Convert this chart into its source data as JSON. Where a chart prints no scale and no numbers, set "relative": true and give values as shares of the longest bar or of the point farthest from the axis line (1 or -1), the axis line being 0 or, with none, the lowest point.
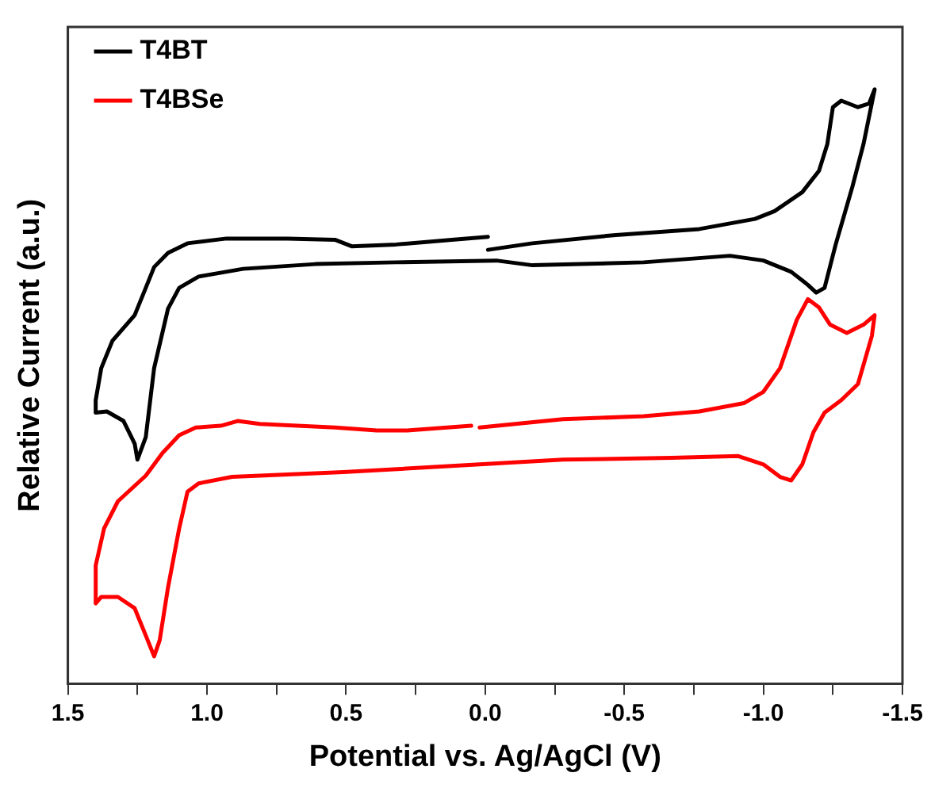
{
  "chart_data": {
    "type": "line",
    "relative": true,
    "xlabel": "Potential vs. Ag/AgCl (V)",
    "ylabel": "Relative Current (a.u.)",
    "xlim": [
      1.5,
      -1.5
    ],
    "xticks": [
      1.5,
      {
        "value": 1.25,
        "label": null
      },
      {
        "value": 1,
        "label": "1.0"
      },
      {
        "value": 0.75,
        "label": null
      },
      0.5,
      {
        "value": 0.25,
        "label": null
      },
      {
        "value": 0,
        "label": "0.0"
      },
      {
        "value": -0.25,
        "label": null
      },
      -0.5,
      {
        "value": -0.75,
        "label": null
      },
      {
        "value": -1,
        "label": "-1.0"
      },
      {
        "value": -1.25,
        "label": null
      },
      -1.5
    ],
    "grid": false,
    "legend": "top left",
    "marker": "none",
    "line_style": "solid",
    "series": [
      {
        "name": "T4BT",
        "color": "#000000",
        "x": [
          -0.01,
          0.12,
          0.32,
          0.48,
          0.54,
          0.71,
          0.93,
          1.07,
          1.14,
          1.19,
          1.22,
          1.26,
          1.34,
          1.38,
          1.4,
          1.4,
          1.36,
          1.3,
          1.26,
          1.25,
          1.22,
          1.19,
          1.14,
          1.1,
          1.03,
          0.87,
          0.61,
          0.32,
          -0.04,
          -0.17,
          -0.57,
          -0.88,
          -1.0,
          -1.1,
          -1.16,
          -1.19,
          -1.22,
          -1.26,
          -1.32,
          -1.36,
          -1.4,
          -1.38,
          -1.34,
          -1.28,
          -1.25,
          -1.23,
          -1.2,
          -1.14,
          -1.04,
          -0.97,
          -0.77,
          -0.47,
          -0.17,
          -0.01
        ],
        "values": [
          0.752,
          0.747,
          0.739,
          0.736,
          0.747,
          0.749,
          0.749,
          0.741,
          0.725,
          0.701,
          0.666,
          0.62,
          0.577,
          0.531,
          0.477,
          0.456,
          0.458,
          0.442,
          0.404,
          0.377,
          0.415,
          0.531,
          0.631,
          0.666,
          0.685,
          0.698,
          0.706,
          0.709,
          0.712,
          0.704,
          0.709,
          0.72,
          0.712,
          0.693,
          0.671,
          0.658,
          0.666,
          0.739,
          0.836,
          0.908,
          1,
          0.976,
          0.97,
          0.981,
          0.97,
          0.908,
          0.863,
          0.827,
          0.795,
          0.782,
          0.765,
          0.755,
          0.741,
          0.73
        ]
      },
      {
        "name": "T4BSe",
        "color": "#ff0000",
        "x": [
          0.02,
          -0.28,
          -0.57,
          -0.77,
          -0.93,
          -1.0,
          -1.06,
          -1.12,
          -1.16,
          -1.2,
          -1.24,
          -1.3,
          -1.36,
          -1.4,
          -1.39,
          -1.34,
          -1.28,
          -1.22,
          -1.18,
          -1.14,
          -1.1,
          -1.06,
          -1.0,
          -0.91,
          -0.67,
          -0.28,
          0.02,
          0.51,
          0.91,
          1.03,
          1.07,
          1.1,
          1.14,
          1.17,
          1.19,
          1.22,
          1.26,
          1.32,
          1.38,
          1.4,
          1.4,
          1.37,
          1.32,
          1.22,
          1.16,
          1.1,
          1.04,
          0.95,
          0.89,
          0.81,
          0.54,
          0.39,
          0.28,
          0.05
        ],
        "values": [
          0.431,
          0.445,
          0.45,
          0.458,
          0.472,
          0.491,
          0.531,
          0.612,
          0.647,
          0.633,
          0.604,
          0.59,
          0.604,
          0.62,
          0.585,
          0.504,
          0.477,
          0.456,
          0.423,
          0.369,
          0.342,
          0.348,
          0.369,
          0.383,
          0.38,
          0.377,
          0.369,
          0.356,
          0.348,
          0.337,
          0.323,
          0.261,
          0.162,
          0.073,
          0.046,
          0.081,
          0.127,
          0.146,
          0.146,
          0.135,
          0.199,
          0.261,
          0.307,
          0.35,
          0.388,
          0.418,
          0.431,
          0.434,
          0.442,
          0.437,
          0.431,
          0.426,
          0.426,
          0.434
        ]
      }
    ]
  }
}
